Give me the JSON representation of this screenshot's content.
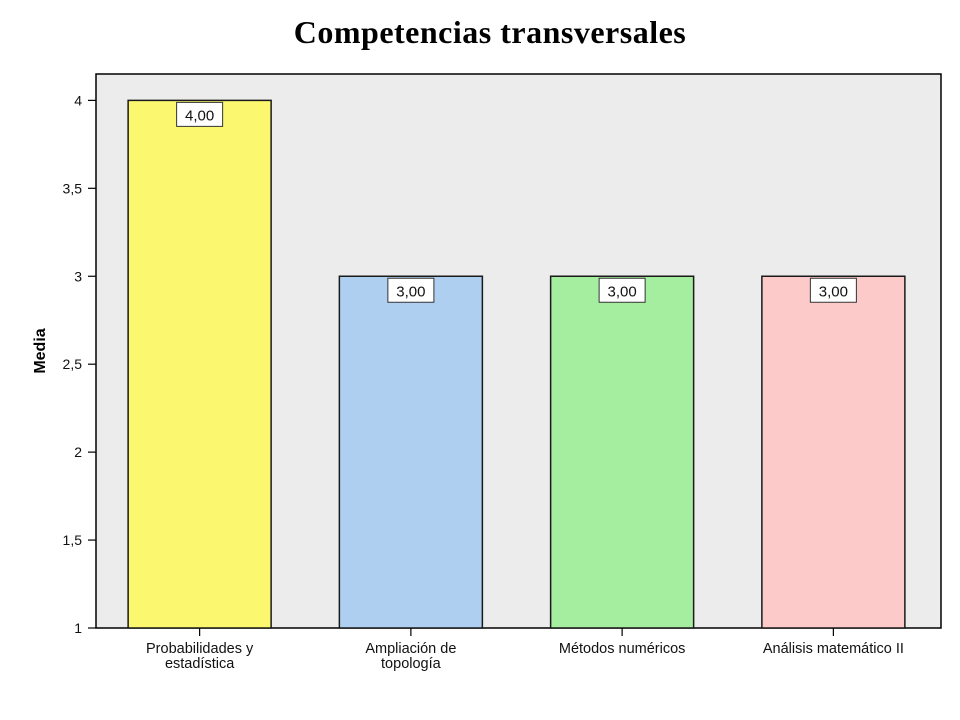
{
  "chart_data": {
    "type": "bar",
    "title": "Competencias transversales",
    "ylabel": "Media",
    "xlabel": "",
    "ylim": [
      1,
      4.15
    ],
    "yticks": [
      "1",
      "1,5",
      "2",
      "2,5",
      "3",
      "3,5",
      "4"
    ],
    "ytick_values": [
      1,
      1.5,
      2,
      2.5,
      3,
      3.5,
      4
    ],
    "categories": [
      [
        "Probabilidades y",
        "estadística"
      ],
      [
        "Ampliación de",
        "topología"
      ],
      [
        "Métodos numéricos"
      ],
      [
        "Análisis matemático II"
      ]
    ],
    "values": [
      4.0,
      3.0,
      3.0,
      3.0
    ],
    "data_labels": [
      "4,00",
      "3,00",
      "3,00",
      "3,00"
    ],
    "bar_colors": [
      "#fbf76e",
      "#aecff0",
      "#a6ee9f",
      "#fccac8"
    ],
    "plot_background": "#ececec",
    "grid": false,
    "legend": "none"
  }
}
